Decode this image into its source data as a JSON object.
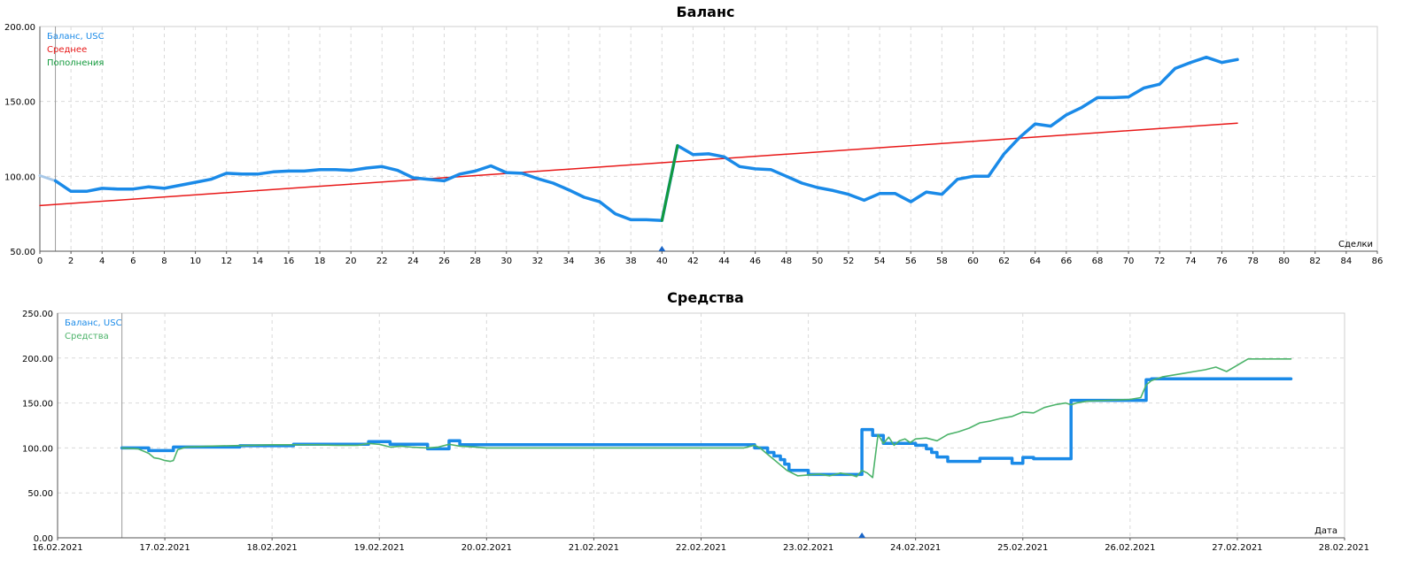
{
  "chart_data": [
    {
      "type": "line",
      "title": "Баланс",
      "xlabel": "Сделки",
      "ylabel": "",
      "xlim": [
        0,
        86
      ],
      "ylim": [
        50,
        200
      ],
      "xticks": [
        0,
        2,
        4,
        6,
        8,
        10,
        12,
        14,
        16,
        18,
        20,
        22,
        24,
        26,
        28,
        30,
        32,
        34,
        36,
        38,
        40,
        42,
        44,
        46,
        48,
        50,
        52,
        54,
        56,
        58,
        60,
        62,
        64,
        66,
        68,
        70,
        72,
        74,
        76,
        78,
        80,
        82,
        84,
        86
      ],
      "yticks": [
        "50.00",
        "100.00",
        "150.00",
        "200.00"
      ],
      "yticks_values": [
        50,
        100,
        150,
        200
      ],
      "grid": true,
      "legend_position": "top-left",
      "colors": {
        "balance": "#1a8ae8",
        "average": "#e81818",
        "deposits": "#129a3c",
        "start": "#a8c8e8"
      },
      "series": [
        {
          "name": "Баланс, USC",
          "x": [
            1,
            2,
            3,
            4,
            5,
            6,
            7,
            8,
            9,
            10,
            11,
            12,
            13,
            14,
            15,
            16,
            17,
            18,
            19,
            20,
            21,
            22,
            23,
            24,
            25,
            26,
            27,
            28,
            29,
            30,
            31,
            32,
            33,
            34,
            35,
            36,
            37,
            38,
            39,
            40,
            41,
            42,
            43,
            44,
            45,
            46,
            47,
            48,
            49,
            50,
            51,
            52,
            53,
            54,
            55,
            56,
            57,
            58,
            59,
            60,
            61,
            62,
            63,
            64,
            65,
            66,
            67,
            68,
            69,
            70,
            71,
            72,
            73,
            74,
            75,
            76,
            77
          ],
          "values": [
            97,
            90,
            90,
            92,
            91.5,
            91.5,
            93,
            92,
            94,
            96,
            98,
            102,
            101.5,
            101.5,
            103,
            103.5,
            103.5,
            104.5,
            104.5,
            104,
            105.5,
            106.5,
            104,
            99,
            98,
            97,
            101.5,
            103.5,
            107,
            102.5,
            102,
            98.5,
            95.5,
            91,
            86,
            83,
            75,
            71,
            71,
            70.5,
            120.5,
            114.5,
            115,
            113,
            106.5,
            105,
            104.5,
            100,
            95.5,
            92.5,
            90.5,
            88,
            84,
            88.5,
            88.5,
            83,
            89.5,
            88,
            98,
            100,
            100,
            115,
            126,
            135,
            133.5,
            141,
            146,
            152.5,
            152.5,
            153,
            159,
            161.5,
            172,
            176,
            179.5,
            176,
            178
          ]
        },
        {
          "name": "Среднее",
          "x": [
            0,
            77
          ],
          "values": [
            80.5,
            135.5
          ]
        },
        {
          "name": "Пополнения",
          "x": [
            40,
            41
          ],
          "values": [
            70.5,
            120.5
          ]
        }
      ],
      "start_segment": {
        "x": [
          0,
          1
        ],
        "values": [
          100.5,
          97
        ]
      },
      "marker_x": 40
    },
    {
      "type": "line",
      "title": "Средства",
      "xlabel": "Дата",
      "ylabel": "",
      "ylim": [
        0,
        250
      ],
      "xticks": [
        "16.02.2021",
        "17.02.2021",
        "18.02.2021",
        "19.02.2021",
        "20.02.2021",
        "21.02.2021",
        "22.02.2021",
        "23.02.2021",
        "24.02.2021",
        "25.02.2021",
        "26.02.2021",
        "27.02.2021",
        "28.02.2021"
      ],
      "yticks": [
        "0.00",
        "50.00",
        "100.00",
        "150.00",
        "200.00",
        "250.00"
      ],
      "yticks_values": [
        0,
        50,
        100,
        150,
        200,
        250
      ],
      "grid": true,
      "legend_position": "top-left",
      "colors": {
        "balance": "#1a8ae8",
        "equity": "#4cb36a"
      },
      "x_unit": "days since 16.02.2021",
      "series": [
        {
          "name": "Баланс, USC",
          "x": [
            0.6,
            0.85,
            0.85,
            1.08,
            1.08,
            1.7,
            1.7,
            2.2,
            2.2,
            2.9,
            2.9,
            3.1,
            3.1,
            3.45,
            3.45,
            3.65,
            3.65,
            3.75,
            3.75,
            5.5,
            5.5,
            6.5,
            6.5,
            6.62,
            6.62,
            6.68,
            6.68,
            6.74,
            6.74,
            6.78,
            6.78,
            6.82,
            6.82,
            6.85,
            6.85,
            7.0,
            7.0,
            7.5,
            7.5,
            7.6,
            7.6,
            7.7,
            7.7,
            8.0,
            8.0,
            8.1,
            8.1,
            8.15,
            8.15,
            8.2,
            8.2,
            8.3,
            8.3,
            8.6,
            8.6,
            8.9,
            8.9,
            9.0,
            9.0,
            9.1,
            9.1,
            9.2,
            9.2,
            9.45,
            9.45,
            10.15,
            10.15,
            10.2,
            10.2,
            11.5
          ],
          "values": [
            100,
            100,
            97,
            97,
            101,
            101,
            102.5,
            102.5,
            104,
            104,
            107,
            107,
            104,
            104,
            99,
            99,
            108,
            108,
            103.5,
            103.5,
            103.5,
            103.5,
            100,
            100,
            95,
            95,
            91,
            91,
            87,
            87,
            82,
            82,
            75,
            75,
            75,
            75,
            70.5,
            70.5,
            120.5,
            120.5,
            114,
            114,
            105,
            105,
            103,
            103,
            99,
            99,
            95,
            95,
            90,
            90,
            85,
            85,
            88.5,
            88.5,
            83,
            83,
            89.5,
            89.5,
            88,
            88,
            88,
            88,
            153,
            153,
            176,
            176,
            177,
            177
          ]
        },
        {
          "name": "Средства",
          "x": [
            0.6,
            0.75,
            0.85,
            0.9,
            0.95,
            1.0,
            1.05,
            1.08,
            1.12,
            1.2,
            1.4,
            1.6,
            1.8,
            2.0,
            2.2,
            2.4,
            2.6,
            2.8,
            2.9,
            3.0,
            3.1,
            3.2,
            3.3,
            3.45,
            3.55,
            3.65,
            3.75,
            3.9,
            4.0,
            4.1,
            4.2,
            5.0,
            6.0,
            6.4,
            6.5,
            6.55,
            6.6,
            6.65,
            6.7,
            6.75,
            6.8,
            6.85,
            6.9,
            7.0,
            7.1,
            7.2,
            7.3,
            7.4,
            7.45,
            7.5,
            7.55,
            7.6,
            7.65,
            7.7,
            7.75,
            7.8,
            7.85,
            7.9,
            7.95,
            8.0,
            8.1,
            8.2,
            8.3,
            8.4,
            8.5,
            8.6,
            8.7,
            8.8,
            8.9,
            9.0,
            9.1,
            9.2,
            9.3,
            9.4,
            9.45,
            9.5,
            9.6,
            9.8,
            10.0,
            10.1,
            10.15,
            10.2,
            10.3,
            10.4,
            10.5,
            10.6,
            10.7,
            10.8,
            10.9,
            11.0,
            11.1,
            11.5
          ],
          "values": [
            100,
            99,
            94,
            89,
            88,
            86,
            85,
            86,
            98,
            101,
            102,
            102.5,
            103,
            103.5,
            103.5,
            103.5,
            103,
            103,
            105,
            104,
            101,
            102,
            101,
            100,
            101,
            104,
            102,
            101,
            100,
            100,
            100,
            100,
            100,
            100,
            103,
            100,
            95,
            90,
            85,
            80,
            75,
            72,
            69,
            70,
            71,
            69,
            72,
            70,
            68,
            75,
            72,
            67,
            115,
            105,
            112,
            103,
            108,
            110,
            106,
            110,
            111,
            108,
            115,
            118,
            122,
            128,
            130,
            133,
            135,
            140,
            139,
            145,
            148,
            150,
            148,
            150,
            152,
            153,
            154,
            156,
            170,
            175,
            179,
            181,
            183,
            185,
            187,
            190,
            185,
            192,
            199,
            199
          ]
        }
      ],
      "marker_x": 7.5
    }
  ],
  "legend1": {
    "balance": "Баланс, USC",
    "average": "Среднее",
    "deposits": "Пополнения"
  },
  "legend2": {
    "balance": "Баланс, USC",
    "equity": "Средства"
  }
}
